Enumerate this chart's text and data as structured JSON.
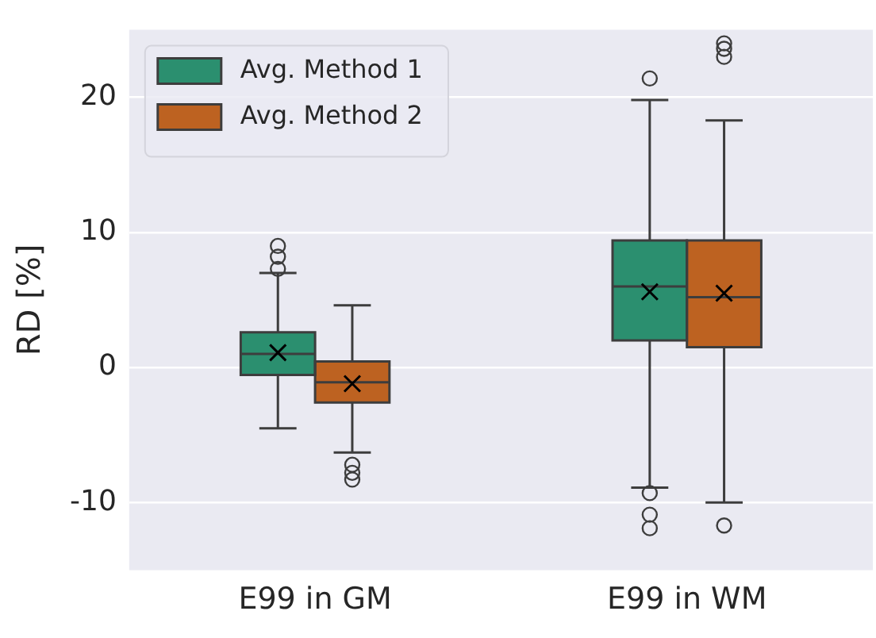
{
  "chart_data": {
    "type": "box",
    "ylabel": "RD [%]",
    "categories": [
      "E99 in GM",
      "E99 in WM"
    ],
    "ylim": [
      -15,
      25
    ],
    "yticks": [
      -10,
      0,
      10,
      20
    ],
    "grid": "y",
    "legend": "top left",
    "series": [
      {
        "name": "Avg. Method 1",
        "color": "#2b8f6f",
        "boxes": [
          {
            "low": -4.5,
            "q1": -0.55,
            "median": 1.0,
            "q3": 2.6,
            "high": 7.0,
            "mean": 1.1,
            "outliers": [
              7.3,
              8.2,
              9.0
            ]
          },
          {
            "low": -8.9,
            "q1": 2.0,
            "median": 6.0,
            "q3": 9.4,
            "high": 19.8,
            "mean": 5.6,
            "outliers": [
              21.4,
              -9.3,
              -10.9,
              -11.9
            ]
          }
        ]
      },
      {
        "name": "Avg. Method 2",
        "color": "#bd6221",
        "boxes": [
          {
            "low": -6.3,
            "q1": -2.6,
            "median": -1.1,
            "q3": 0.45,
            "high": 4.6,
            "mean": -1.2,
            "outliers": [
              -7.2,
              -7.8,
              -8.3
            ]
          },
          {
            "low": -10.0,
            "q1": 1.5,
            "median": 5.2,
            "q3": 9.4,
            "high": 18.3,
            "mean": 5.5,
            "outliers": [
              -11.7,
              23.0,
              23.6,
              24.0
            ]
          }
        ]
      }
    ]
  }
}
